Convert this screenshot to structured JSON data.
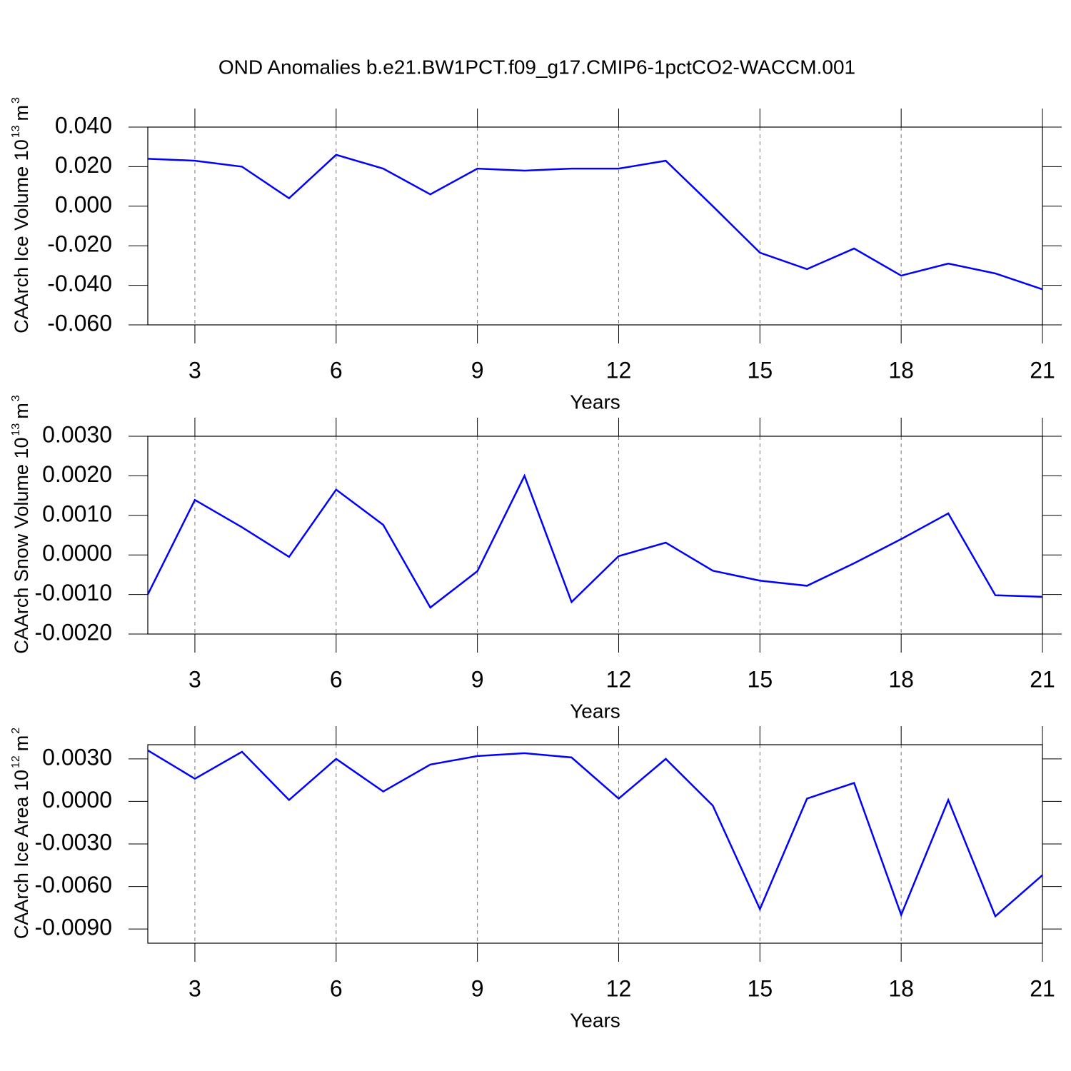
{
  "title": "OND Anomalies b.e21.BW1PCT.f09_g17.CMIP6-1pctCO2-WACCM.001",
  "chart_data": [
    {
      "type": "line",
      "xlabel": "Years",
      "ylabel": [
        "CAArch Ice Volume 10",
        "13",
        "m",
        "3"
      ],
      "x": [
        2,
        3,
        4,
        5,
        6,
        7,
        8,
        9,
        10,
        11,
        12,
        13,
        14,
        15,
        16,
        17,
        18,
        19,
        20,
        21
      ],
      "series": [
        {
          "color": "#0000ff",
          "values": [
            0.024,
            0.023,
            0.02,
            0.004,
            0.026,
            0.019,
            0.006,
            0.019,
            0.018,
            0.019,
            0.019,
            0.023,
            0.0,
            -0.0235,
            -0.0318,
            -0.0214,
            -0.0351,
            -0.029,
            -0.034,
            -0.042
          ]
        }
      ],
      "xlim": [
        2,
        21
      ],
      "xticks": [
        3,
        6,
        9,
        12,
        15,
        18,
        21
      ],
      "xgrid": true,
      "ylim": [
        -0.06,
        0.04
      ],
      "yticks": [
        {
          "value": -0.06,
          "label": "-0.060"
        },
        {
          "value": -0.04,
          "label": "-0.040"
        },
        {
          "value": -0.02,
          "label": "-0.020"
        },
        {
          "value": 0,
          "label": "0.000"
        },
        {
          "value": 0.02,
          "label": "0.020"
        },
        {
          "value": 0.04,
          "label": "0.040"
        }
      ]
    },
    {
      "type": "line",
      "xlabel": "Years",
      "ylabel": [
        "CAArch Snow Volume 10",
        "13",
        "m",
        "3"
      ],
      "x": [
        2,
        3,
        4,
        5,
        6,
        7,
        8,
        9,
        10,
        11,
        12,
        13,
        14,
        15,
        16,
        17,
        18,
        19,
        20,
        21
      ],
      "series": [
        {
          "color": "#0000ff",
          "values": [
            -0.001,
            0.00139,
            0.0007,
            -5e-05,
            0.00165,
            0.00076,
            -0.00133,
            -0.00041,
            0.002,
            -0.00119,
            -3e-05,
            0.00031,
            -0.0004,
            -0.00065,
            -0.00078,
            -0.00021,
            0.0004,
            0.00105,
            -0.00102,
            -0.00106
          ]
        }
      ],
      "xlim": [
        2,
        21
      ],
      "xticks": [
        3,
        6,
        9,
        12,
        15,
        18,
        21
      ],
      "xgrid": true,
      "ylim": [
        -0.002,
        0.003
      ],
      "yticks": [
        {
          "value": -0.002,
          "label": "-0.0020"
        },
        {
          "value": -0.001,
          "label": "-0.0010"
        },
        {
          "value": 0,
          "label": "0.0000"
        },
        {
          "value": 0.001,
          "label": "0.0010"
        },
        {
          "value": 0.002,
          "label": "0.0020"
        },
        {
          "value": 0.003,
          "label": "0.0030"
        }
      ]
    },
    {
      "type": "line",
      "xlabel": "Years",
      "ylabel": [
        "CAArch Ice Area 10",
        "12",
        "m",
        "2"
      ],
      "x": [
        2,
        3,
        4,
        5,
        6,
        7,
        8,
        9,
        10,
        11,
        12,
        13,
        14,
        15,
        16,
        17,
        18,
        19,
        20,
        21
      ],
      "series": [
        {
          "color": "#0000ff",
          "values": [
            0.0036,
            0.0016,
            0.0035,
            0.0001,
            0.003,
            0.0007,
            0.0026,
            0.0032,
            0.0034,
            0.0031,
            0.0002,
            0.003,
            -0.0003,
            -0.0076,
            0.0002,
            0.0013,
            -0.008,
            0.0001,
            -0.0081,
            -0.0052
          ]
        }
      ],
      "xlim": [
        2,
        21
      ],
      "xticks": [
        3,
        6,
        9,
        12,
        15,
        18,
        21
      ],
      "xgrid": true,
      "ylim": [
        -0.01,
        0.004
      ],
      "yticks": [
        {
          "value": -0.009,
          "label": "-0.0090"
        },
        {
          "value": -0.006,
          "label": "-0.0060"
        },
        {
          "value": -0.003,
          "label": "-0.0030"
        },
        {
          "value": 0,
          "label": "0.0000"
        },
        {
          "value": 0.003,
          "label": "0.0030"
        }
      ]
    }
  ]
}
